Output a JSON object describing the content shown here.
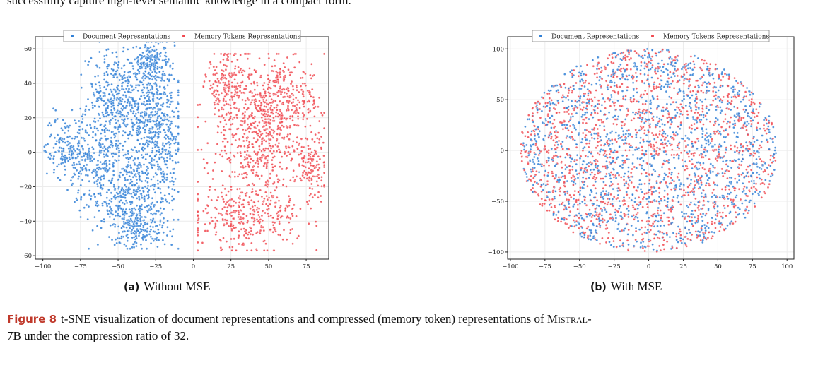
{
  "top_text": "successfully capture high-level semantic knowledge in a compact form.",
  "colors": {
    "document": "#2f7fd6",
    "memory": "#f0484f"
  },
  "legend": {
    "document_label": "Document Representations",
    "memory_label": "Memory Tokens Representations"
  },
  "subfigures": [
    {
      "label": "(a)",
      "caption": "Without MSE"
    },
    {
      "label": "(b)",
      "caption": "With MSE"
    }
  ],
  "figure_caption": {
    "label": "Figure 8",
    "text_before": "t-SNE visualization of document representations and compressed (memory token) representations of ",
    "model": "Mistral-",
    "text_after": "7B under the compression ratio of 32."
  },
  "chart_data": [
    {
      "type": "scatter",
      "title": "",
      "xlim": [
        -105,
        90
      ],
      "ylim": [
        -62,
        67
      ],
      "xticks": [
        -100,
        -75,
        -50,
        -25,
        0,
        25,
        50,
        75
      ],
      "yticks": [
        -60,
        -40,
        -20,
        0,
        20,
        40,
        60
      ],
      "grid": true,
      "legend_position": "top-center",
      "series": [
        {
          "name": "Document Representations",
          "color_key": "document",
          "clusters": [
            {
              "cx": -30,
              "cy": 25,
              "sx": 9,
              "sy": 20,
              "n": 420
            },
            {
              "cx": -53,
              "cy": 28,
              "sx": 9,
              "sy": 15,
              "n": 360
            },
            {
              "cx": -43,
              "cy": -25,
              "sx": 13,
              "sy": 13,
              "n": 450
            },
            {
              "cx": -20,
              "cy": 5,
              "sx": 7,
              "sy": 22,
              "n": 260
            },
            {
              "cx": -28,
              "cy": 52,
              "sx": 5,
              "sy": 6,
              "n": 120
            },
            {
              "cx": -85,
              "cy": 3,
              "sx": 7,
              "sy": 9,
              "n": 150
            },
            {
              "cx": -66,
              "cy": -5,
              "sx": 8,
              "sy": 11,
              "n": 170
            },
            {
              "cx": -35,
              "cy": -45,
              "sx": 9,
              "sy": 5,
              "n": 130
            }
          ],
          "xrange": [
            -99,
            -10
          ],
          "yrange": [
            -56,
            64
          ]
        },
        {
          "name": "Memory Tokens Representations",
          "color_key": "memory",
          "clusters": [
            {
              "cx": 45,
              "cy": 10,
              "sx": 17,
              "sy": 22,
              "n": 650
            },
            {
              "cx": 22,
              "cy": 38,
              "sx": 7,
              "sy": 10,
              "n": 180
            },
            {
              "cx": 62,
              "cy": 30,
              "sx": 12,
              "sy": 9,
              "n": 200
            },
            {
              "cx": 35,
              "cy": -38,
              "sx": 18,
              "sy": 9,
              "n": 300
            },
            {
              "cx": 78,
              "cy": -8,
              "sx": 5,
              "sy": 10,
              "n": 120
            }
          ],
          "xrange": [
            3,
            87
          ],
          "yrange": [
            -57,
            57
          ]
        }
      ]
    },
    {
      "type": "scatter",
      "title": "",
      "xlim": [
        -102,
        105
      ],
      "ylim": [
        -107,
        112
      ],
      "xticks": [
        -100,
        -75,
        -50,
        -25,
        0,
        25,
        50,
        75,
        100
      ],
      "yticks": [
        -100,
        -50,
        0,
        50,
        100
      ],
      "grid": true,
      "legend_position": "top-center",
      "series": [
        {
          "name": "Document Representations",
          "color_key": "document",
          "mixed": true,
          "n": 1500
        },
        {
          "name": "Memory Tokens Representations",
          "color_key": "memory",
          "mixed": true,
          "n": 1500
        }
      ],
      "blob": {
        "cx": 0,
        "cy": 0,
        "rx": 93,
        "ry": 100
      }
    }
  ]
}
